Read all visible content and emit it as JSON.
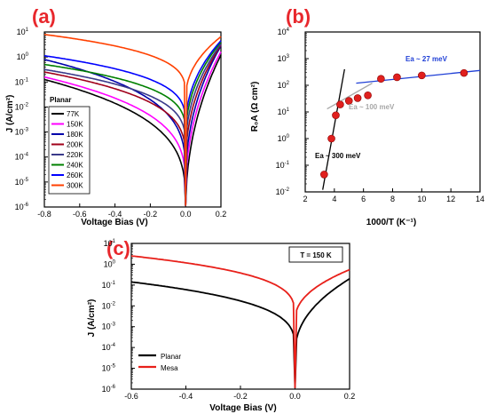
{
  "chart_data": [
    {
      "id": "a",
      "panel_label": "(a)",
      "type": "line",
      "xlabel": "Voltage Bias (V)",
      "ylabel": "J (A/cm²)",
      "xlim": [
        -0.8,
        0.2
      ],
      "ylim_exp": [
        -6,
        1
      ],
      "yscale": "log",
      "x_ticks": [
        "-0.8",
        "-0.6",
        "-0.4",
        "-0.2",
        "0.0",
        "0.2"
      ],
      "legend_title": "Planar",
      "legend_position": "bottom-left",
      "series": [
        {
          "name": "77K",
          "color": "#000000",
          "a0": -0.9,
          "a1": -6.3,
          "right_end": 1.2
        },
        {
          "name": "150K",
          "color": "#ff00ff",
          "a0": -0.8,
          "a1": -5.6,
          "right_end": 1.6
        },
        {
          "name": "180K",
          "color": "#0000aa",
          "a0": -0.1,
          "a1": -5.1,
          "right_end": 2.8
        },
        {
          "name": "200K",
          "color": "#a0001a",
          "a0": -0.6,
          "a1": -4.4,
          "right_end": 3.0
        },
        {
          "name": "220K",
          "color": "#3a3a8a",
          "a0": -0.5,
          "a1": -3.8,
          "right_end": 3.3
        },
        {
          "name": "240K",
          "color": "#008000",
          "a0": -0.3,
          "a1": -3.3,
          "right_end": 4.0
        },
        {
          "name": "260K",
          "color": "#0000ff",
          "a0": 0.05,
          "a1": -2.9,
          "right_end": 4.5
        },
        {
          "name": "300K",
          "color": "#ff4000",
          "a0": 0.9,
          "a1": -1.7,
          "right_end": 6.5
        }
      ]
    },
    {
      "id": "b",
      "panel_label": "(b)",
      "type": "scatter",
      "xlabel": "1000/T (K⁻¹)",
      "ylabel": "R₀A (Ω cm²)",
      "xlim": [
        2,
        14
      ],
      "ylim_exp": [
        -2,
        4
      ],
      "yscale": "log",
      "x_ticks": [
        "2",
        "4",
        "6",
        "8",
        "10",
        "12",
        "14"
      ],
      "points": [
        {
          "x": 3.3,
          "y": 0.045
        },
        {
          "x": 3.8,
          "y": 1.0
        },
        {
          "x": 4.1,
          "y": 7.5
        },
        {
          "x": 4.4,
          "y": 19
        },
        {
          "x": 5.0,
          "y": 26
        },
        {
          "x": 5.6,
          "y": 33
        },
        {
          "x": 6.3,
          "y": 42
        },
        {
          "x": 7.2,
          "y": 175
        },
        {
          "x": 8.3,
          "y": 200
        },
        {
          "x": 10.0,
          "y": 235
        },
        {
          "x": 12.9,
          "y": 290
        }
      ],
      "fits": [
        {
          "label": "Ea ~ 300 meV",
          "color": "#000000",
          "x": [
            3.2,
            4.7
          ],
          "y": [
            0.012,
            400
          ]
        },
        {
          "label": "Ea ~ 100 meV",
          "color": "#a8a8a8",
          "x": [
            3.5,
            6.6
          ],
          "y": [
            13,
            120
          ]
        },
        {
          "label": "Ea ~ 27 meV",
          "color": "#1f3fd6",
          "x": [
            5.5,
            14
          ],
          "y": [
            120,
            360
          ]
        }
      ],
      "annotations": [
        "Ea ~ 27 meV",
        "Ea ~ 100 meV",
        "Ea ~ 300 meV"
      ]
    },
    {
      "id": "c",
      "panel_label": "(c)",
      "type": "line",
      "xlabel": "Voltage Bias (V)",
      "ylabel": "J (A/cm²)",
      "xlim": [
        -0.6,
        0.2
      ],
      "ylim_exp": [
        -6,
        1
      ],
      "yscale": "log",
      "x_ticks": [
        "-0.6",
        "-0.4",
        "-0.2",
        "0.0",
        "0.2"
      ],
      "box_label": "T = 150 K",
      "legend_position": "bottom-left",
      "series": [
        {
          "name": "Planar",
          "color": "#000000",
          "a0": -0.85,
          "a1": -4.3,
          "right_end": 0.2
        },
        {
          "name": "Mesa",
          "color": "#e8201a",
          "a0": 0.4,
          "a1": -2.7,
          "right_end": 0.55
        }
      ]
    }
  ]
}
